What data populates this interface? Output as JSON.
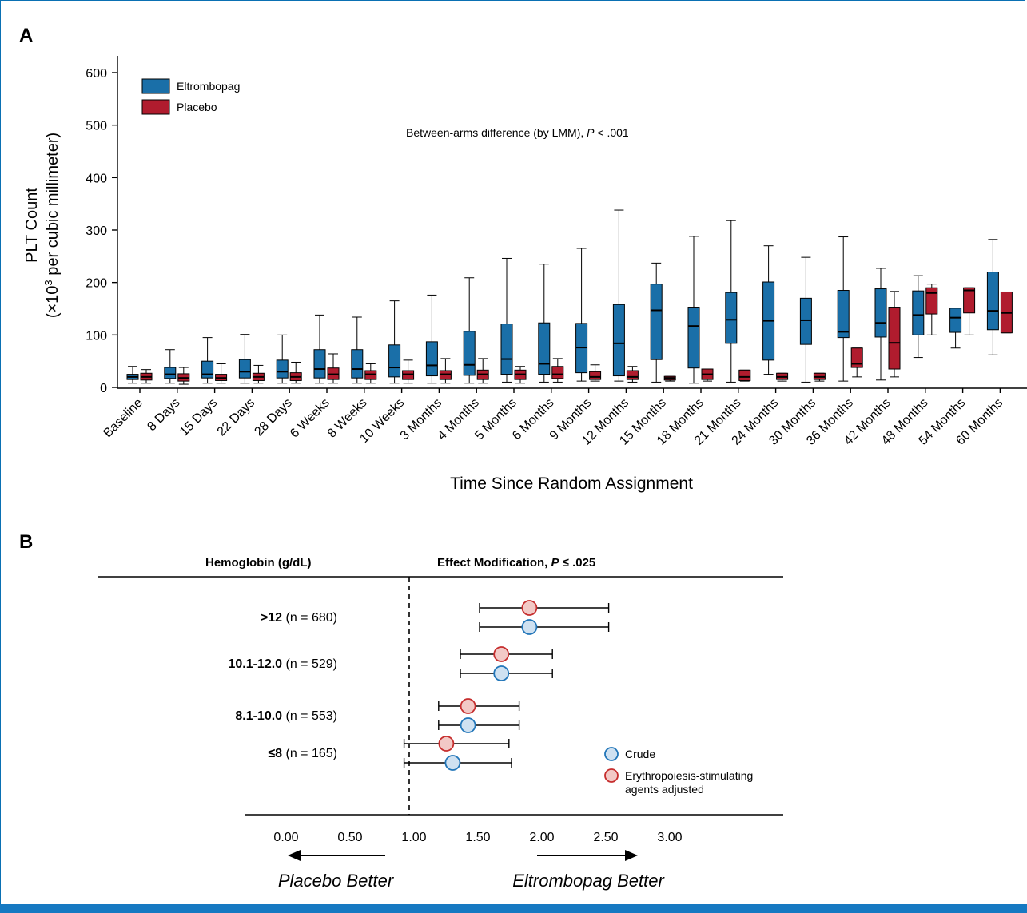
{
  "colors": {
    "eltrombopag": "#1a6fa8",
    "placebo": "#b01c2e",
    "crude_fill": "#cfe1f1",
    "crude_stroke": "#2276b9",
    "esa_fill": "#f2c9c6",
    "esa_stroke": "#c62e2e",
    "accent_bar": "#1679c2"
  },
  "chart_data": [
    {
      "panel": "A",
      "type": "box",
      "ylabel_line1": "PLT Count",
      "ylabel_line2_pre": "(×10",
      "ylabel_line2_sup": "3",
      "ylabel_line2_post": " per cubic millimeter)",
      "xlabel": "Time Since Random Assignment",
      "annotation_pre": "Between-arms difference (by LMM), ",
      "annotation_p": "P",
      "annotation_post": " < .001",
      "ylim": [
        0,
        620
      ],
      "yticks": [
        0,
        100,
        200,
        300,
        400,
        500,
        600
      ],
      "legend_placement": "top-left",
      "categories": [
        "Baseline",
        "8 Days",
        "15 Days",
        "22 Days",
        "28 Days",
        "6 Weeks",
        "8 Weeks",
        "10 Weeks",
        "3 Months",
        "4 Months",
        "5 Months",
        "6 Months",
        "9 Months",
        "12 Months",
        "15 Months",
        "18 Months",
        "21 Months",
        "24 Months",
        "30 Months",
        "36 Months",
        "42 Months",
        "48 Months",
        "54 Months",
        "60 Months"
      ],
      "series": [
        {
          "name": "Eltrombopag",
          "color": "#1a6fa8",
          "boxes": [
            [
              8,
              15,
              20,
              25,
              40
            ],
            [
              8,
              17,
              25,
              38,
              72
            ],
            [
              8,
              18,
              25,
              50,
              95
            ],
            [
              8,
              18,
              30,
              53,
              101
            ],
            [
              8,
              18,
              30,
              52,
              100
            ],
            [
              8,
              18,
              35,
              72,
              138
            ],
            [
              8,
              18,
              35,
              72,
              134
            ],
            [
              8,
              20,
              38,
              81,
              165
            ],
            [
              8,
              22,
              42,
              87,
              176
            ],
            [
              8,
              23,
              43,
              107,
              209
            ],
            [
              10,
              25,
              54,
              121,
              246
            ],
            [
              10,
              25,
              45,
              123,
              235
            ],
            [
              12,
              28,
              76,
              122,
              265
            ],
            [
              12,
              22,
              84,
              158,
              338
            ],
            [
              10,
              53,
              147,
              197,
              237
            ],
            [
              8,
              37,
              117,
              153,
              288
            ],
            [
              10,
              84,
              129,
              181,
              318
            ],
            [
              25,
              52,
              127,
              201,
              270
            ],
            [
              10,
              82,
              128,
              170,
              248
            ],
            [
              12,
              95,
              106,
              185,
              287
            ],
            [
              14,
              96,
              123,
              188,
              227
            ],
            [
              57,
              100,
              138,
              184,
              213
            ],
            [
              75,
              105,
              133,
              151,
              151
            ],
            [
              62,
              110,
              146,
              220,
              282
            ]
          ]
        },
        {
          "name": "Placebo",
          "color": "#b01c2e",
          "boxes": [
            [
              8,
              14,
              20,
              27,
              34
            ],
            [
              6,
              12,
              18,
              26,
              38
            ],
            [
              8,
              13,
              18,
              25,
              45
            ],
            [
              8,
              13,
              20,
              27,
              42
            ],
            [
              8,
              13,
              20,
              28,
              48
            ],
            [
              8,
              15,
              25,
              37,
              64
            ],
            [
              8,
              15,
              25,
              32,
              45
            ],
            [
              8,
              15,
              25,
              32,
              52
            ],
            [
              8,
              15,
              25,
              32,
              55
            ],
            [
              8,
              15,
              25,
              33,
              55
            ],
            [
              8,
              15,
              25,
              33,
              40
            ],
            [
              10,
              17,
              25,
              40,
              55
            ],
            [
              12,
              15,
              20,
              30,
              43
            ],
            [
              10,
              15,
              20,
              32,
              40
            ],
            [
              12,
              14,
              18,
              21,
              21
            ],
            [
              12,
              15,
              25,
              35,
              35
            ],
            [
              12,
              13,
              20,
              33,
              33
            ],
            [
              12,
              15,
              20,
              27,
              27
            ],
            [
              12,
              15,
              20,
              27,
              27
            ],
            [
              20,
              38,
              45,
              75,
              75
            ],
            [
              20,
              35,
              85,
              153,
              183
            ],
            [
              100,
              140,
              180,
              190,
              197
            ],
            [
              100,
              142,
              185,
              190,
              190
            ],
            [
              104,
              104,
              142,
              182,
              182
            ]
          ]
        }
      ]
    },
    {
      "panel": "B",
      "type": "forest",
      "header_left": "Hemoglobin (g/dL)",
      "header_right_pre": "Effect Modification, ",
      "header_right_p": "P",
      "header_right_post": " ≤ .025",
      "xlim": [
        0,
        3.5
      ],
      "xticks": [
        "0.00",
        "0.50",
        "1.00",
        "1.50",
        "2.00",
        "2.50",
        "3.00"
      ],
      "xtick_values": [
        0,
        0.5,
        1.0,
        1.5,
        2.0,
        2.5,
        3.0
      ],
      "reference_line": 1.0,
      "left_arrow_label": "Placebo Better",
      "right_arrow_label": "Eltrombopag Better",
      "rows": [
        {
          "label_bold": ">12",
          "label_n": " (n = 680)",
          "esa": [
            1.94,
            1.55,
            2.56
          ],
          "crude": [
            1.94,
            1.55,
            2.56
          ]
        },
        {
          "label_bold": "10.1-12.0",
          "label_n": " (n = 529)",
          "esa": [
            1.72,
            1.4,
            2.12
          ],
          "crude": [
            1.72,
            1.4,
            2.12
          ]
        },
        {
          "label_bold": "8.1-10.0",
          "label_n": " (n = 553)",
          "esa": [
            1.46,
            1.23,
            1.86
          ],
          "crude": [
            1.46,
            1.23,
            1.86
          ]
        },
        {
          "label_bold": "≤8",
          "label_n": "  (n = 165)",
          "esa": [
            1.29,
            0.96,
            1.78
          ],
          "crude": [
            1.34,
            0.96,
            1.8
          ]
        }
      ],
      "legend": [
        {
          "name": "Crude",
          "key": "crude"
        },
        {
          "name_line1": "Erythropoiesis-stimulating",
          "name_line2": "agents adjusted",
          "key": "esa"
        }
      ]
    }
  ]
}
